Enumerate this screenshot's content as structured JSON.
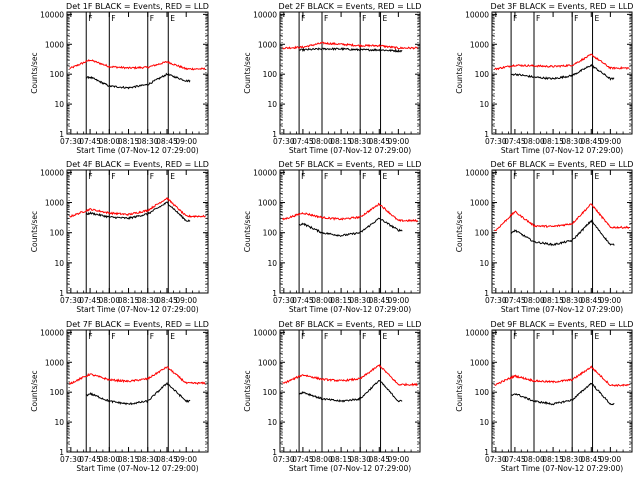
{
  "chart_data": [
    {
      "type": "line",
      "title": "Det 1F BLACK = Events, RED = LLD",
      "xlabel": "Start Time (07-Nov-12 07:29:00)",
      "ylabel": "Counts/sec",
      "x_ticks": [
        "07:30",
        "07:45",
        "08:00",
        "08:15",
        "08:30",
        "08:45",
        "09:00"
      ],
      "y_ticks": [
        "1",
        "10",
        "100",
        "1000",
        "10000"
      ],
      "ylim": [
        1,
        12000
      ],
      "yscale": "log",
      "flags": [
        "F",
        "F",
        "F",
        "E"
      ],
      "series": [
        {
          "color": "#ff0000",
          "values": [
            160,
            300,
            180,
            160,
            170,
            260,
            150
          ]
        },
        {
          "color": "#000000",
          "values": [
            60,
            80,
            40,
            35,
            45,
            100,
            60
          ]
        }
      ]
    },
    {
      "type": "line",
      "title": "Det 2F BLACK = Events, RED = LLD",
      "xlabel": "Start Time (07-Nov-12 07:29:00)",
      "ylabel": "Counts/sec",
      "x_ticks": [
        "07:30",
        "07:45",
        "08:00",
        "08:15",
        "08:30",
        "08:45",
        "09:00"
      ],
      "y_ticks": [
        "1",
        "10",
        "100",
        "1000",
        "10000"
      ],
      "ylim": [
        1,
        12000
      ],
      "yscale": "log",
      "flags": [
        "F",
        "F",
        "F",
        "E"
      ],
      "series": [
        {
          "color": "#ff0000",
          "values": [
            750,
            800,
            1100,
            1000,
            900,
            900,
            750
          ]
        },
        {
          "color": "#000000",
          "values": [
            600,
            650,
            700,
            700,
            650,
            650,
            600
          ]
        }
      ]
    },
    {
      "type": "line",
      "title": "Det 3F BLACK = Events, RED = LLD",
      "xlabel": "Start Time (07-Nov-12 07:29:00)",
      "ylabel": "Counts/sec",
      "x_ticks": [
        "07:30",
        "07:45",
        "08:00",
        "08:15",
        "08:30",
        "08:45",
        "09:00"
      ],
      "y_ticks": [
        "1",
        "10",
        "100",
        "1000",
        "10000"
      ],
      "ylim": [
        1,
        12000
      ],
      "yscale": "log",
      "flags": [
        "F",
        "F",
        "F",
        "E"
      ],
      "series": [
        {
          "color": "#ff0000",
          "values": [
            150,
            200,
            190,
            180,
            200,
            450,
            160
          ]
        },
        {
          "color": "#000000",
          "values": [
            80,
            100,
            80,
            70,
            90,
            200,
            70
          ]
        }
      ]
    },
    {
      "type": "line",
      "title": "Det 4F BLACK = Events, RED = LLD",
      "xlabel": "Start Time (07-Nov-12 07:29:00)",
      "ylabel": "Counts/sec",
      "x_ticks": [
        "07:30",
        "07:45",
        "08:00",
        "08:15",
        "08:30",
        "08:45",
        "09:00"
      ],
      "y_ticks": [
        "1",
        "10",
        "100",
        "1000",
        "10000"
      ],
      "ylim": [
        1,
        12000
      ],
      "yscale": "log",
      "flags": [
        "F",
        "F",
        "F",
        "E"
      ],
      "series": [
        {
          "color": "#ff0000",
          "values": [
            350,
            600,
            450,
            400,
            550,
            1400,
            350
          ]
        },
        {
          "color": "#000000",
          "values": [
            250,
            450,
            330,
            300,
            420,
            1000,
            250
          ]
        }
      ]
    },
    {
      "type": "line",
      "title": "Det 5F BLACK = Events, RED = LLD",
      "xlabel": "Start Time (07-Nov-12 07:29:00)",
      "ylabel": "Counts/sec",
      "x_ticks": [
        "07:30",
        "07:45",
        "08:00",
        "08:15",
        "08:30",
        "08:45",
        "09:00"
      ],
      "y_ticks": [
        "1",
        "10",
        "100",
        "1000",
        "10000"
      ],
      "ylim": [
        1,
        12000
      ],
      "yscale": "log",
      "flags": [
        "F",
        "F",
        "F",
        "E"
      ],
      "series": [
        {
          "color": "#ff0000",
          "values": [
            280,
            450,
            320,
            280,
            330,
            900,
            250
          ]
        },
        {
          "color": "#000000",
          "values": [
            120,
            200,
            100,
            80,
            100,
            300,
            120
          ]
        }
      ]
    },
    {
      "type": "line",
      "title": "Det 6F BLACK = Events, RED = LLD",
      "xlabel": "Start Time (07-Nov-12 07:29:00)",
      "ylabel": "Counts/sec",
      "x_ticks": [
        "07:30",
        "07:45",
        "08:00",
        "08:15",
        "08:30",
        "08:45",
        "09:00"
      ],
      "y_ticks": [
        "1",
        "10",
        "100",
        "1000",
        "10000"
      ],
      "ylim": [
        1,
        12000
      ],
      "yscale": "log",
      "flags": [
        "F",
        "F",
        "F",
        "E"
      ],
      "series": [
        {
          "color": "#ff0000",
          "values": [
            120,
            500,
            170,
            160,
            200,
            900,
            150
          ]
        },
        {
          "color": "#000000",
          "values": [
            30,
            120,
            50,
            40,
            55,
            250,
            40
          ]
        }
      ]
    },
    {
      "type": "line",
      "title": "Det 7F BLACK = Events, RED = LLD",
      "xlabel": "Start Time (07-Nov-12 07:29:00)",
      "ylabel": "Counts/sec",
      "x_ticks": [
        "07:30",
        "07:45",
        "08:00",
        "08:15",
        "08:30",
        "08:45",
        "09:00"
      ],
      "y_ticks": [
        "1",
        "10",
        "100",
        "1000",
        "10000"
      ],
      "ylim": [
        1,
        12000
      ],
      "yscale": "log",
      "flags": [
        "F",
        "F",
        "F",
        "E"
      ],
      "series": [
        {
          "color": "#ff0000",
          "values": [
            200,
            400,
            260,
            230,
            280,
            700,
            200
          ]
        },
        {
          "color": "#000000",
          "values": [
            40,
            90,
            50,
            40,
            50,
            200,
            50
          ]
        }
      ]
    },
    {
      "type": "line",
      "title": "Det 8F BLACK = Events, RED = LLD",
      "xlabel": "Start Time (07-Nov-12 07:29:00)",
      "ylabel": "Counts/sec",
      "x_ticks": [
        "07:30",
        "07:45",
        "08:00",
        "08:15",
        "08:30",
        "08:45",
        "09:00"
      ],
      "y_ticks": [
        "1",
        "10",
        "100",
        "1000",
        "10000"
      ],
      "ylim": [
        1,
        12000
      ],
      "yscale": "log",
      "flags": [
        "F",
        "F",
        "F",
        "E"
      ],
      "series": [
        {
          "color": "#ff0000",
          "values": [
            200,
            380,
            270,
            240,
            280,
            800,
            180
          ]
        },
        {
          "color": "#000000",
          "values": [
            50,
            100,
            60,
            50,
            60,
            250,
            50
          ]
        }
      ]
    },
    {
      "type": "line",
      "title": "Det 9F BLACK = Events, RED = LLD",
      "xlabel": "Start Time (07-Nov-12 07:29:00)",
      "ylabel": "Counts/sec",
      "x_ticks": [
        "07:30",
        "07:45",
        "08:00",
        "08:15",
        "08:30",
        "08:45",
        "09:00"
      ],
      "y_ticks": [
        "1",
        "10",
        "100",
        "1000",
        "10000"
      ],
      "ylim": [
        1,
        12000
      ],
      "yscale": "log",
      "flags": [
        "F",
        "F",
        "F",
        "E"
      ],
      "series": [
        {
          "color": "#ff0000",
          "values": [
            180,
            350,
            240,
            220,
            260,
            700,
            170
          ]
        },
        {
          "color": "#000000",
          "values": [
            40,
            90,
            50,
            40,
            55,
            200,
            40
          ]
        }
      ]
    }
  ]
}
